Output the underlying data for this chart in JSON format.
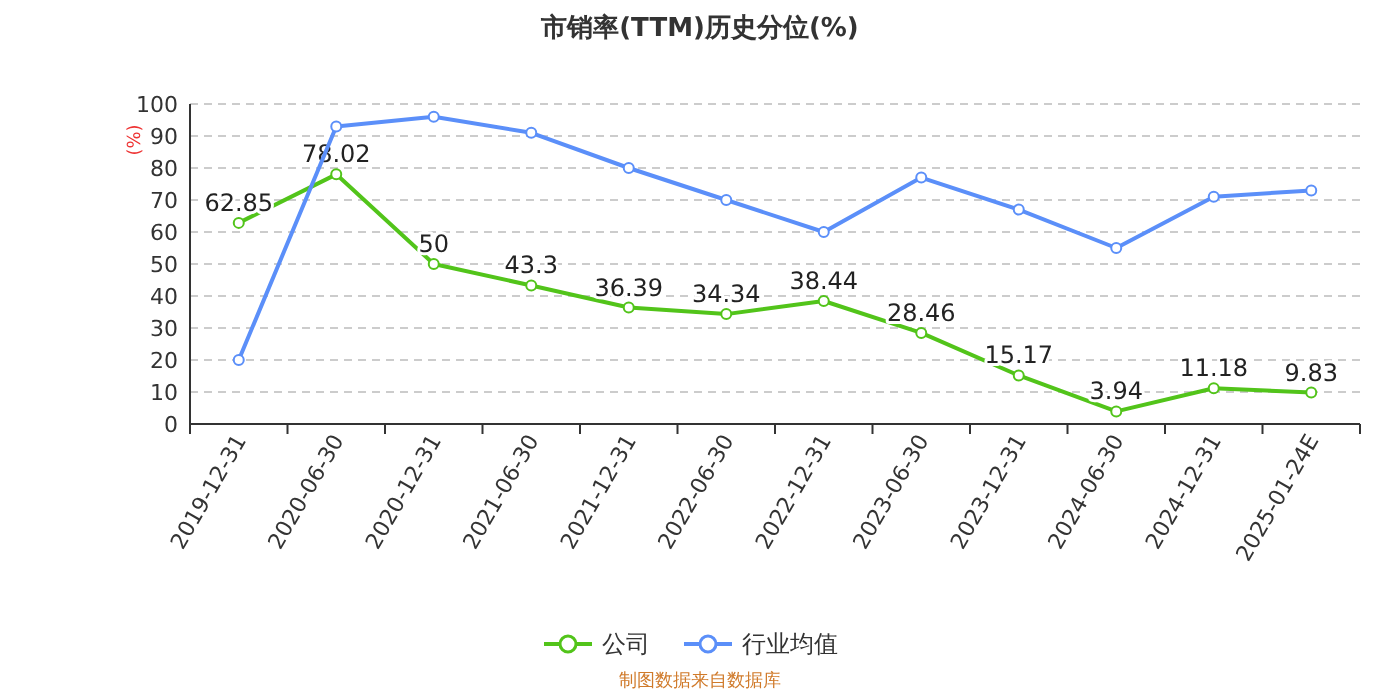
{
  "chart_data": {
    "type": "line",
    "title": "市销率(TTM)历史分位(%)",
    "ylabel": "(%)",
    "categories": [
      "2019-12-31",
      "2020-06-30",
      "2020-12-31",
      "2021-06-30",
      "2021-12-31",
      "2022-06-30",
      "2022-12-31",
      "2023-06-30",
      "2023-12-31",
      "2024-06-30",
      "2024-12-31",
      "2025-01-24E"
    ],
    "series": [
      {
        "name": "公司",
        "color": "#52c41a",
        "values": [
          62.85,
          78.02,
          50,
          43.3,
          36.39,
          34.34,
          38.44,
          28.46,
          15.17,
          3.94,
          11.18,
          9.83
        ],
        "value_labels": [
          "62.85",
          "78.02",
          "50",
          "43.3",
          "36.39",
          "34.34",
          "38.44",
          "28.46",
          "15.17",
          "3.94",
          "11.18",
          "9.83"
        ]
      },
      {
        "name": "行业均值",
        "color": "#5b8ff9",
        "values": [
          20,
          93,
          96,
          91,
          80,
          70,
          60,
          77,
          67,
          55,
          71,
          73
        ]
      }
    ],
    "ylim": [
      0,
      100
    ],
    "yticks": [
      0,
      10,
      20,
      30,
      40,
      50,
      60,
      70,
      80,
      90,
      100
    ],
    "grid": "y",
    "legend": "bottom",
    "marker": "circle",
    "annotations": [
      "制图数据来自数据库"
    ]
  }
}
